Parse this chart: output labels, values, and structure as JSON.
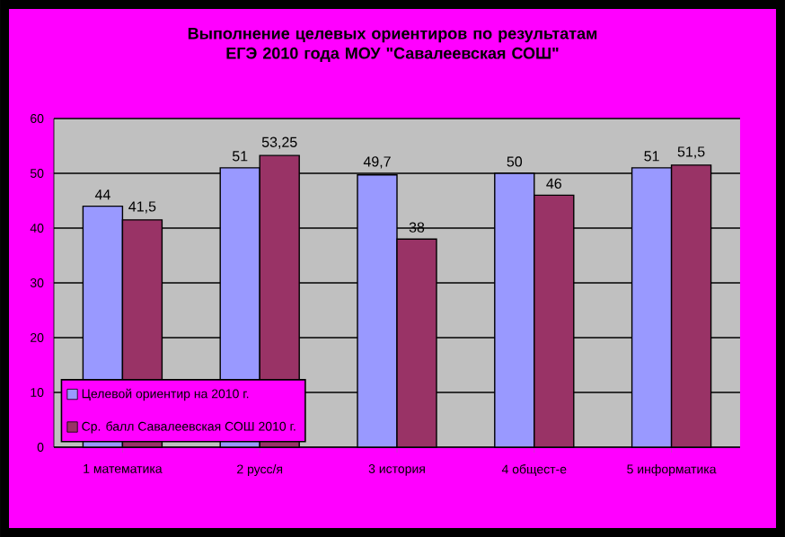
{
  "chart_data": {
    "type": "bar",
    "title": "Выполнение целевых ориентиров по результатам ЕГЭ 2010 года МОУ \"Савалеевская СОШ\"",
    "categories": [
      "1 математика",
      "2 русс/я",
      "3 история",
      "4 общест-е",
      "5 информатика"
    ],
    "series": [
      {
        "name": "Целевой ориентир на 2010 г.",
        "color": "#9999ff",
        "values": [
          44,
          51,
          49.7,
          50,
          51
        ],
        "value_labels": [
          "44",
          "51",
          "49,7",
          "50",
          "51"
        ]
      },
      {
        "name": "Ср. балл Савалеевская СОШ 2010 г.",
        "color": "#993366",
        "values": [
          41.5,
          53.25,
          38,
          46,
          51.5
        ],
        "value_labels": [
          "41,5",
          "53,25",
          "38",
          "46",
          "51,5"
        ]
      }
    ],
    "ylim": [
      0,
      60
    ],
    "yticks": [
      0,
      10,
      20,
      30,
      40,
      50,
      60
    ],
    "grid": "y",
    "legend": "bottom left"
  }
}
